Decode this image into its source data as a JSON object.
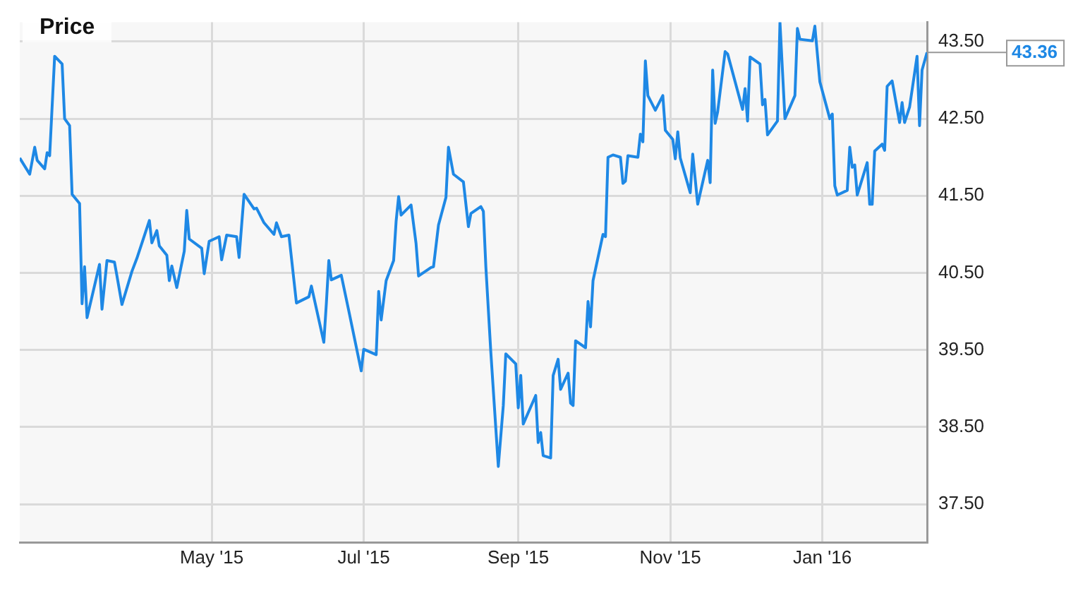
{
  "chart_data": {
    "type": "line",
    "title": "Price",
    "x": [
      "2015-02-13",
      "2015-02-17",
      "2015-02-19",
      "2015-02-20",
      "2015-02-23",
      "2015-02-24",
      "2015-02-25",
      "2015-02-27",
      "2015-03-02",
      "2015-03-03",
      "2015-03-05",
      "2015-03-06",
      "2015-03-09",
      "2015-03-10",
      "2015-03-11",
      "2015-03-12",
      "2015-03-17",
      "2015-03-18",
      "2015-03-20",
      "2015-03-23",
      "2015-03-24",
      "2015-03-26",
      "2015-03-30",
      "2015-04-01",
      "2015-04-06",
      "2015-04-07",
      "2015-04-09",
      "2015-04-10",
      "2015-04-13",
      "2015-04-14",
      "2015-04-15",
      "2015-04-17",
      "2015-04-20",
      "2015-04-21",
      "2015-04-22",
      "2015-04-27",
      "2015-04-28",
      "2015-04-30",
      "2015-05-04",
      "2015-05-05",
      "2015-05-07",
      "2015-05-11",
      "2015-05-12",
      "2015-05-14",
      "2015-05-18",
      "2015-05-19",
      "2015-05-22",
      "2015-05-26",
      "2015-05-27",
      "2015-05-29",
      "2015-06-01",
      "2015-06-04",
      "2015-06-09",
      "2015-06-10",
      "2015-06-15",
      "2015-06-16",
      "2015-06-17",
      "2015-06-18",
      "2015-06-22",
      "2015-06-25",
      "2015-06-30",
      "2015-07-01",
      "2015-07-06",
      "2015-07-07",
      "2015-07-08",
      "2015-07-10",
      "2015-07-13",
      "2015-07-14",
      "2015-07-15",
      "2015-07-16",
      "2015-07-20",
      "2015-07-22",
      "2015-07-23",
      "2015-07-28",
      "2015-07-29",
      "2015-07-31",
      "2015-08-03",
      "2015-08-04",
      "2015-08-06",
      "2015-08-10",
      "2015-08-12",
      "2015-08-13",
      "2015-08-17",
      "2015-08-18",
      "2015-08-19",
      "2015-08-21",
      "2015-08-24",
      "2015-08-26",
      "2015-08-27",
      "2015-08-31",
      "2015-09-01",
      "2015-09-02",
      "2015-09-03",
      "2015-09-08",
      "2015-09-09",
      "2015-09-10",
      "2015-09-11",
      "2015-09-14",
      "2015-09-15",
      "2015-09-17",
      "2015-09-18",
      "2015-09-21",
      "2015-09-22",
      "2015-09-23",
      "2015-09-24",
      "2015-09-28",
      "2015-09-29",
      "2015-09-30",
      "2015-10-01",
      "2015-10-05",
      "2015-10-06",
      "2015-10-07",
      "2015-10-09",
      "2015-10-12",
      "2015-10-13",
      "2015-10-14",
      "2015-10-15",
      "2015-10-19",
      "2015-10-20",
      "2015-10-21",
      "2015-10-22",
      "2015-10-23",
      "2015-10-26",
      "2015-10-29",
      "2015-10-30",
      "2015-11-02",
      "2015-11-03",
      "2015-11-04",
      "2015-11-05",
      "2015-11-09",
      "2015-11-10",
      "2015-11-12",
      "2015-11-16",
      "2015-11-17",
      "2015-11-18",
      "2015-11-19",
      "2015-11-20",
      "2015-11-23",
      "2015-11-24",
      "2015-11-30",
      "2015-12-01",
      "2015-12-02",
      "2015-12-03",
      "2015-12-07",
      "2015-12-08",
      "2015-12-09",
      "2015-12-10",
      "2015-12-14",
      "2015-12-15",
      "2015-12-17",
      "2015-12-21",
      "2015-12-22",
      "2015-12-23",
      "2015-12-28",
      "2015-12-29",
      "2015-12-31",
      "2016-01-04",
      "2016-01-05",
      "2016-01-06",
      "2016-01-07",
      "2016-01-11",
      "2016-01-12",
      "2016-01-13",
      "2016-01-14",
      "2016-01-15",
      "2016-01-19",
      "2016-01-20",
      "2016-01-21",
      "2016-01-22",
      "2016-01-25",
      "2016-01-26",
      "2016-01-27",
      "2016-01-29",
      "2016-02-01",
      "2016-02-02",
      "2016-02-03",
      "2016-02-05",
      "2016-02-08",
      "2016-02-09",
      "2016-02-10",
      "2016-02-12"
    ],
    "series": [
      {
        "color": "#1e88e5",
        "values": [
          41.99,
          41.78,
          42.13,
          41.96,
          41.85,
          42.06,
          42.02,
          43.31,
          43.21,
          42.5,
          42.41,
          41.52,
          41.4,
          40.1,
          40.58,
          39.92,
          40.61,
          40.03,
          40.66,
          40.64,
          40.46,
          40.09,
          40.52,
          40.69,
          41.18,
          40.89,
          41.05,
          40.85,
          40.73,
          40.4,
          40.59,
          40.31,
          40.78,
          41.31,
          40.94,
          40.82,
          40.49,
          40.91,
          40.97,
          40.67,
          40.99,
          40.97,
          40.7,
          41.52,
          41.33,
          41.34,
          41.15,
          41.0,
          41.15,
          40.97,
          40.99,
          40.11,
          40.19,
          40.33,
          39.6,
          40.1,
          40.66,
          40.41,
          40.47,
          40.01,
          39.23,
          39.51,
          39.44,
          40.26,
          39.89,
          40.4,
          40.66,
          41.17,
          41.49,
          41.25,
          41.38,
          40.88,
          40.46,
          40.57,
          40.58,
          41.12,
          41.48,
          42.13,
          41.78,
          41.68,
          41.1,
          41.27,
          41.36,
          41.3,
          40.58,
          39.47,
          37.99,
          38.78,
          39.45,
          39.32,
          38.75,
          39.17,
          38.54,
          38.91,
          38.3,
          38.43,
          38.13,
          38.1,
          39.17,
          39.38,
          38.99,
          39.2,
          38.81,
          38.78,
          39.62,
          39.53,
          40.13,
          39.8,
          40.4,
          41.0,
          40.97,
          42.0,
          42.03,
          42.0,
          41.66,
          41.69,
          42.02,
          42.0,
          42.3,
          42.2,
          43.25,
          42.8,
          42.61,
          42.8,
          42.35,
          42.23,
          41.98,
          42.33,
          41.99,
          41.54,
          42.04,
          41.39,
          41.96,
          41.67,
          43.13,
          42.44,
          42.59,
          43.37,
          43.34,
          42.62,
          42.89,
          42.47,
          43.3,
          43.21,
          42.68,
          42.75,
          42.29,
          42.47,
          43.75,
          42.5,
          42.8,
          43.67,
          43.53,
          43.51,
          43.7,
          42.98,
          42.5,
          42.56,
          41.63,
          41.51,
          41.57,
          42.13,
          41.87,
          41.9,
          41.51,
          41.93,
          41.39,
          41.39,
          42.08,
          42.17,
          42.09,
          42.92,
          42.99,
          42.45,
          42.71,
          42.45,
          42.65,
          43.31,
          42.41,
          43.13,
          43.36
        ]
      }
    ],
    "xlim": [
      "2015-02-13",
      "2016-02-12"
    ],
    "xticks": [
      {
        "value": "2015-05-01",
        "label": "May '15"
      },
      {
        "value": "2015-07-01",
        "label": "Jul '15"
      },
      {
        "value": "2015-09-01",
        "label": "Sep '15"
      },
      {
        "value": "2015-11-01",
        "label": "Nov '15"
      },
      {
        "value": "2016-01-01",
        "label": "Jan '16"
      }
    ],
    "ylim": [
      37,
      43.75
    ],
    "yticks": [
      {
        "value": 37.5,
        "label": "37.50"
      },
      {
        "value": 38.5,
        "label": "38.50"
      },
      {
        "value": 39.5,
        "label": "39.50"
      },
      {
        "value": 40.5,
        "label": "40.50"
      },
      {
        "value": 41.5,
        "label": "41.50"
      },
      {
        "value": 42.5,
        "label": "42.50"
      },
      {
        "value": 43.5,
        "label": "43.50"
      }
    ],
    "annotations": [
      {
        "text": "43.36",
        "x": "2016-02-12",
        "y": 43.36
      }
    ],
    "grid": true,
    "legend": false,
    "marker": "none",
    "line_style": "solid"
  }
}
